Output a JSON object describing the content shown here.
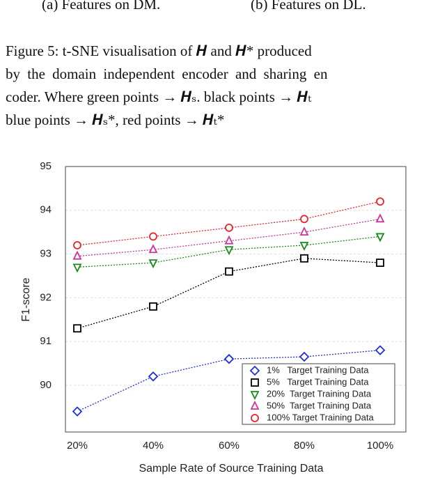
{
  "subcaptions": [
    "(a) Features on DM.",
    "(b) Features on DL."
  ],
  "caption": [
    "Figure 5: t-SNE visualisation of 𝑯 and 𝑯* produced",
    "by the domain independent encoder and sharing en",
    "coder. Where green points → 𝑯ₛ. black points → 𝑯ₜ",
    "blue points → 𝑯ₛ*, red points → 𝑯ₜ*"
  ],
  "chart_data": {
    "type": "line",
    "xlabel": "Sample Rate of Source Training Data",
    "ylabel": "F1-score",
    "categories": [
      "20%",
      "40%",
      "60%",
      "80%",
      "100%"
    ],
    "ylim": [
      88.93,
      95
    ],
    "yticks": [
      90,
      91,
      92,
      93,
      94,
      95
    ],
    "grid": true,
    "legend": "lower right",
    "series": [
      {
        "name": "1%   Target Training Data",
        "color": "#1f2fdc",
        "marker": "diamond",
        "values": [
          89.4,
          90.2,
          90.6,
          90.65,
          90.8
        ]
      },
      {
        "name": "5%   Target Training Data",
        "color": "#000000",
        "marker": "square",
        "values": [
          91.3,
          91.8,
          92.6,
          92.9,
          92.8
        ]
      },
      {
        "name": "20%  Target Training Data",
        "color": "#1a8a1a",
        "marker": "triangle-down",
        "values": [
          92.7,
          92.8,
          93.1,
          93.2,
          93.4
        ]
      },
      {
        "name": "50%  Target Training Data",
        "color": "#cc3399",
        "marker": "triangle-up",
        "values": [
          92.95,
          93.1,
          93.3,
          93.5,
          93.8
        ]
      },
      {
        "name": "100% Target Training Data",
        "color": "#e8212a",
        "marker": "circle",
        "values": [
          93.2,
          93.4,
          93.6,
          93.8,
          94.2
        ]
      }
    ]
  }
}
